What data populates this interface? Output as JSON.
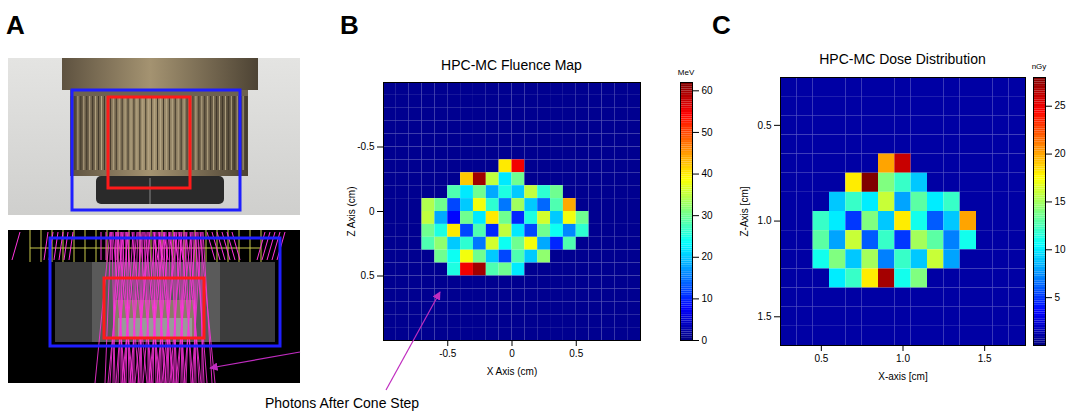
{
  "panel_labels": [
    "A",
    "B",
    "C"
  ],
  "annotation": "Photons After Cone Step",
  "chart_data": [
    {
      "type": "heatmap",
      "title": "HPC-MC Fluence Map",
      "x_label": "X Axis (cm)",
      "y_label": "Z Axis (cm)",
      "xlim": [
        -1,
        1
      ],
      "ylim": [
        1,
        -1
      ],
      "xticks": [
        -0.5,
        0,
        0.5
      ],
      "yticks": [
        -0.5,
        0,
        0.5
      ],
      "x_edges": [
        -1,
        -0.9,
        -0.8,
        -0.7,
        -0.6,
        -0.5,
        -0.4,
        -0.3,
        -0.2,
        -0.1,
        0,
        0.1,
        0.2,
        0.3,
        0.4,
        0.5,
        0.6,
        0.7,
        0.8,
        0.9,
        1
      ],
      "y_edges": [
        -1,
        -0.9,
        -0.8,
        -0.7,
        -0.6,
        -0.5,
        -0.4,
        -0.3,
        -0.2,
        -0.1,
        0,
        0.1,
        0.2,
        0.3,
        0.4,
        0.5,
        0.6,
        0.7,
        0.8,
        0.9,
        1
      ],
      "values": [
        [
          1,
          1,
          1,
          1,
          1,
          1,
          1,
          1,
          1,
          1,
          1,
          1,
          1,
          1,
          1,
          1,
          1,
          1,
          1,
          1
        ],
        [
          1,
          1,
          1,
          1,
          1,
          1,
          1,
          1,
          1,
          1,
          1,
          1,
          1,
          1,
          1,
          1,
          1,
          1,
          1,
          1
        ],
        [
          1,
          1,
          1,
          1,
          1,
          1,
          1,
          1,
          1,
          1,
          1,
          1,
          1,
          1,
          1,
          1,
          1,
          1,
          1,
          1
        ],
        [
          1,
          1,
          1,
          1,
          1,
          1,
          1,
          1,
          1,
          1,
          1,
          1,
          1,
          1,
          1,
          1,
          1,
          1,
          1,
          1
        ],
        [
          1,
          1,
          1,
          1,
          1,
          1,
          1,
          1,
          1,
          1,
          1,
          1,
          1,
          1,
          1,
          1,
          1,
          1,
          1,
          1
        ],
        [
          1,
          1,
          1,
          1,
          1,
          1,
          1,
          1,
          1,
          1,
          1,
          1,
          1,
          1,
          1,
          1,
          1,
          1,
          1,
          1
        ],
        [
          1,
          1,
          1,
          1,
          1,
          1,
          1,
          1,
          1,
          40,
          55,
          1,
          1,
          1,
          1,
          1,
          1,
          1,
          1,
          1
        ],
        [
          1,
          1,
          1,
          1,
          1,
          1,
          42,
          60,
          35,
          22,
          30,
          1,
          1,
          1,
          1,
          1,
          1,
          1,
          1,
          1
        ],
        [
          1,
          1,
          1,
          1,
          1,
          28,
          22,
          30,
          18,
          25,
          20,
          35,
          26,
          30,
          1,
          1,
          1,
          1,
          1,
          1
        ],
        [
          1,
          1,
          1,
          34,
          30,
          12,
          20,
          38,
          26,
          15,
          33,
          20,
          14,
          28,
          44,
          1,
          1,
          1,
          1,
          1
        ],
        [
          1,
          1,
          1,
          35,
          18,
          8,
          30,
          22,
          40,
          30,
          10,
          25,
          36,
          20,
          38,
          30,
          1,
          1,
          1,
          1
        ],
        [
          1,
          1,
          1,
          30,
          25,
          40,
          12,
          28,
          10,
          35,
          22,
          12,
          30,
          24,
          16,
          26,
          1,
          1,
          1,
          1
        ],
        [
          1,
          1,
          1,
          28,
          32,
          20,
          26,
          15,
          36,
          24,
          30,
          38,
          18,
          10,
          28,
          1,
          1,
          1,
          1,
          1
        ],
        [
          1,
          1,
          1,
          1,
          30,
          24,
          38,
          30,
          20,
          12,
          28,
          20,
          32,
          1,
          1,
          1,
          1,
          1,
          1,
          1
        ],
        [
          1,
          1,
          1,
          1,
          1,
          25,
          55,
          60,
          28,
          30,
          22,
          1,
          1,
          1,
          1,
          1,
          1,
          1,
          1,
          1
        ],
        [
          1,
          1,
          1,
          1,
          1,
          1,
          1,
          1,
          1,
          1,
          1,
          1,
          1,
          1,
          1,
          1,
          1,
          1,
          1,
          1
        ],
        [
          1,
          1,
          1,
          1,
          1,
          1,
          1,
          1,
          1,
          1,
          1,
          1,
          1,
          1,
          1,
          1,
          1,
          1,
          1,
          1
        ],
        [
          1,
          1,
          1,
          1,
          1,
          1,
          1,
          1,
          1,
          1,
          1,
          1,
          1,
          1,
          1,
          1,
          1,
          1,
          1,
          1
        ],
        [
          1,
          1,
          1,
          1,
          1,
          1,
          1,
          1,
          1,
          1,
          1,
          1,
          1,
          1,
          1,
          1,
          1,
          1,
          1,
          1
        ],
        [
          1,
          1,
          1,
          1,
          1,
          1,
          1,
          1,
          1,
          1,
          1,
          1,
          1,
          1,
          1,
          1,
          1,
          1,
          1,
          1
        ]
      ],
      "colorbar": {
        "label": "MeV",
        "range": [
          0,
          62
        ],
        "ticks": [
          0,
          10,
          20,
          30,
          40,
          50,
          60
        ]
      }
    },
    {
      "type": "heatmap",
      "title": "HPC-MC Dose Distribution",
      "x_label": "X-axis [cm]",
      "y_label": "Z-Axis [cm]",
      "xlim": [
        0.25,
        1.75
      ],
      "ylim": [
        1.65,
        0.25
      ],
      "xticks": [
        0.5,
        {
          "value": 1,
          "label": "1.0"
        },
        1.5
      ],
      "yticks": [
        0.5,
        {
          "value": 1,
          "label": "1.0"
        },
        1.5
      ],
      "x_edges": [
        0.25,
        0.35,
        0.45,
        0.55,
        0.65,
        0.75,
        0.85,
        0.95,
        1.05,
        1.15,
        1.25,
        1.35,
        1.45,
        1.55,
        1.65,
        1.75
      ],
      "y_edges": [
        0.25,
        0.35,
        0.45,
        0.55,
        0.65,
        0.75,
        0.85,
        0.95,
        1.05,
        1.15,
        1.25,
        1.35,
        1.45,
        1.55,
        1.65
      ],
      "values": [
        [
          1,
          1,
          1,
          1,
          1,
          1,
          1,
          1,
          1,
          1,
          1,
          1,
          1,
          1,
          1
        ],
        [
          1,
          1,
          1,
          1,
          1,
          1,
          1,
          1,
          1,
          1,
          1,
          1,
          1,
          1,
          1
        ],
        [
          1,
          1,
          1,
          1,
          1,
          1,
          1,
          1,
          1,
          1,
          1,
          1,
          1,
          1,
          1
        ],
        [
          1,
          1,
          1,
          1,
          1,
          1,
          1,
          1,
          1,
          1,
          1,
          1,
          1,
          1,
          1
        ],
        [
          1,
          1,
          1,
          1,
          1,
          1,
          20,
          26,
          1,
          1,
          1,
          1,
          1,
          1,
          1
        ],
        [
          1,
          1,
          1,
          1,
          18,
          28,
          14,
          12,
          9,
          1,
          1,
          1,
          1,
          1,
          1
        ],
        [
          1,
          1,
          1,
          9,
          12,
          10,
          16,
          8,
          13,
          10,
          12,
          1,
          1,
          1,
          1
        ],
        [
          1,
          1,
          12,
          10,
          5,
          14,
          9,
          18,
          11,
          6,
          9,
          20,
          1,
          1,
          1
        ],
        [
          1,
          1,
          13,
          8,
          16,
          6,
          12,
          5,
          15,
          13,
          7,
          11,
          1,
          1,
          1
        ],
        [
          1,
          1,
          11,
          14,
          9,
          15,
          7,
          12,
          9,
          16,
          8,
          1,
          1,
          1,
          1
        ],
        [
          1,
          1,
          1,
          10,
          12,
          18,
          27,
          11,
          14,
          1,
          1,
          1,
          1,
          1,
          1
        ],
        [
          1,
          1,
          1,
          1,
          1,
          1,
          1,
          1,
          1,
          1,
          1,
          1,
          1,
          1,
          1
        ],
        [
          1,
          1,
          1,
          1,
          1,
          1,
          1,
          1,
          1,
          1,
          1,
          1,
          1,
          1,
          1
        ],
        [
          1,
          1,
          1,
          1,
          1,
          1,
          1,
          1,
          1,
          1,
          1,
          1,
          1,
          1,
          1
        ]
      ],
      "colorbar": {
        "label": "nGy",
        "range": [
          0,
          28
        ],
        "ticks": [
          5,
          10,
          15,
          20,
          25
        ]
      }
    }
  ]
}
